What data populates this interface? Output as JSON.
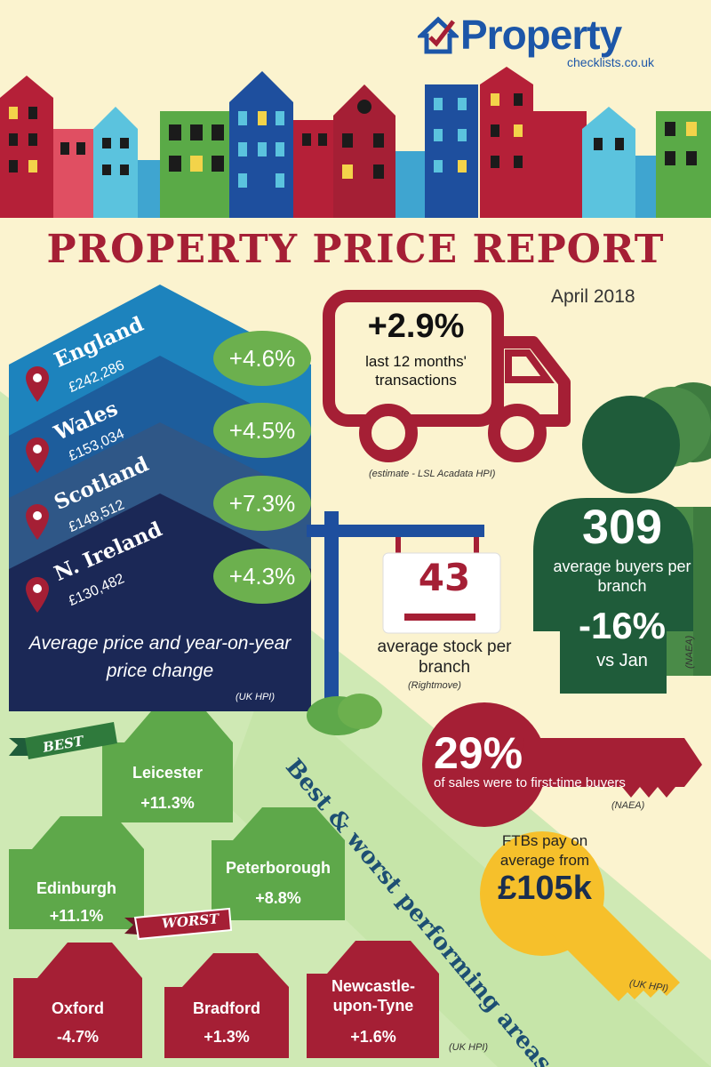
{
  "brand": {
    "name": "Property",
    "sub": "checklists.co.uk"
  },
  "report": {
    "title": "PROPERTY PRICE REPORT",
    "date": "April 2018"
  },
  "regions": [
    {
      "name": "England",
      "price": "£242,286",
      "change": "+4.6%",
      "color": "#1d83bd"
    },
    {
      "name": "Wales",
      "price": "£153,034",
      "change": "+4.5%",
      "color": "#1d5d9c"
    },
    {
      "name": "Scotland",
      "price": "£148,512",
      "change": "+7.3%",
      "color": "#2f5787"
    },
    {
      "name": "N. Ireland",
      "price": "£130,482",
      "change": "+4.3%",
      "color": "#1b2856"
    }
  ],
  "regions_caption": "Average price and year-on-year price change",
  "regions_source": "(UK HPI)",
  "transactions": {
    "value": "+2.9%",
    "label": "last 12 months' transactions",
    "source": "(estimate - LSL Acadata HPI)"
  },
  "stock": {
    "value": "43",
    "label": "average stock per branch",
    "source": "(Rightmove)"
  },
  "buyers": {
    "value": "309",
    "label": "average buyers per branch",
    "change": "-16%",
    "compare": "vs Jan",
    "source": "(NAEA)"
  },
  "first_time": {
    "value": "29%",
    "label": "of sales were to first-time buyers",
    "source": "(NAEA)"
  },
  "ftb_pay": {
    "label": "FTBs pay on average from",
    "value": "£105k",
    "source": "(UK HPI)"
  },
  "areas": {
    "title": "Best & worst performing areas",
    "best_label": "BEST",
    "worst_label": "WORST",
    "best": [
      {
        "name": "Leicester",
        "change": "+11.3%"
      },
      {
        "name": "Edinburgh",
        "change": "+11.1%"
      },
      {
        "name": "Peterborough",
        "change": "+8.8%"
      }
    ],
    "worst": [
      {
        "name": "Oxford",
        "change": "-4.7%"
      },
      {
        "name": "Bradford",
        "change": "+1.3%"
      },
      {
        "name": "Newcastle-upon-Tyne",
        "change": "+1.6%"
      }
    ],
    "source": "(UK HPI)"
  },
  "colors": {
    "red": "#a51f35",
    "green": "#5ea84a",
    "darkgreen": "#1f5c3a",
    "navy": "#1b2856",
    "yellow": "#f6c02b",
    "cream": "#fbf3cf"
  }
}
